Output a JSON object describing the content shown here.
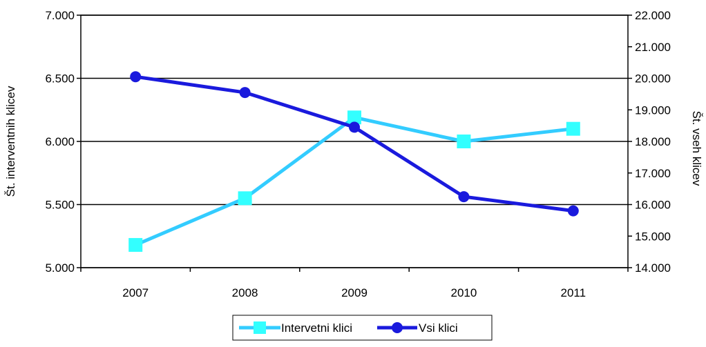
{
  "chart_data": {
    "type": "line",
    "categories": [
      "2007",
      "2008",
      "2009",
      "2010",
      "2011"
    ],
    "y_left": {
      "label": "Št. interventnih klicev",
      "ylim": [
        5000,
        7000
      ],
      "ticks": [
        "5.000",
        "5.500",
        "6.000",
        "6.500",
        "7.000"
      ],
      "tick_values": [
        5000,
        5500,
        6000,
        6500,
        7000
      ]
    },
    "y_right": {
      "label": "Št. vseh klicev",
      "ylim": [
        14000,
        22000
      ],
      "ticks": [
        "14.000",
        "15.000",
        "16.000",
        "17.000",
        "18.000",
        "19.000",
        "20.000",
        "21.000",
        "22.000"
      ],
      "tick_values": [
        14000,
        15000,
        16000,
        17000,
        18000,
        19000,
        20000,
        21000,
        22000
      ]
    },
    "series": [
      {
        "name": "Intervetni klici",
        "axis": "left",
        "values": [
          5180,
          5550,
          6190,
          6000,
          6100
        ],
        "color": "#33CCFF",
        "marker": "square",
        "marker_color": "#33FFFF"
      },
      {
        "name": "Vsi klici",
        "axis": "right",
        "values": [
          20050,
          19550,
          18450,
          16250,
          15800
        ],
        "color": "#1A1ADD",
        "marker": "circle",
        "marker_color": "#1A1ADD"
      }
    ],
    "grid": "horizontal",
    "legend_position": "bottom"
  }
}
